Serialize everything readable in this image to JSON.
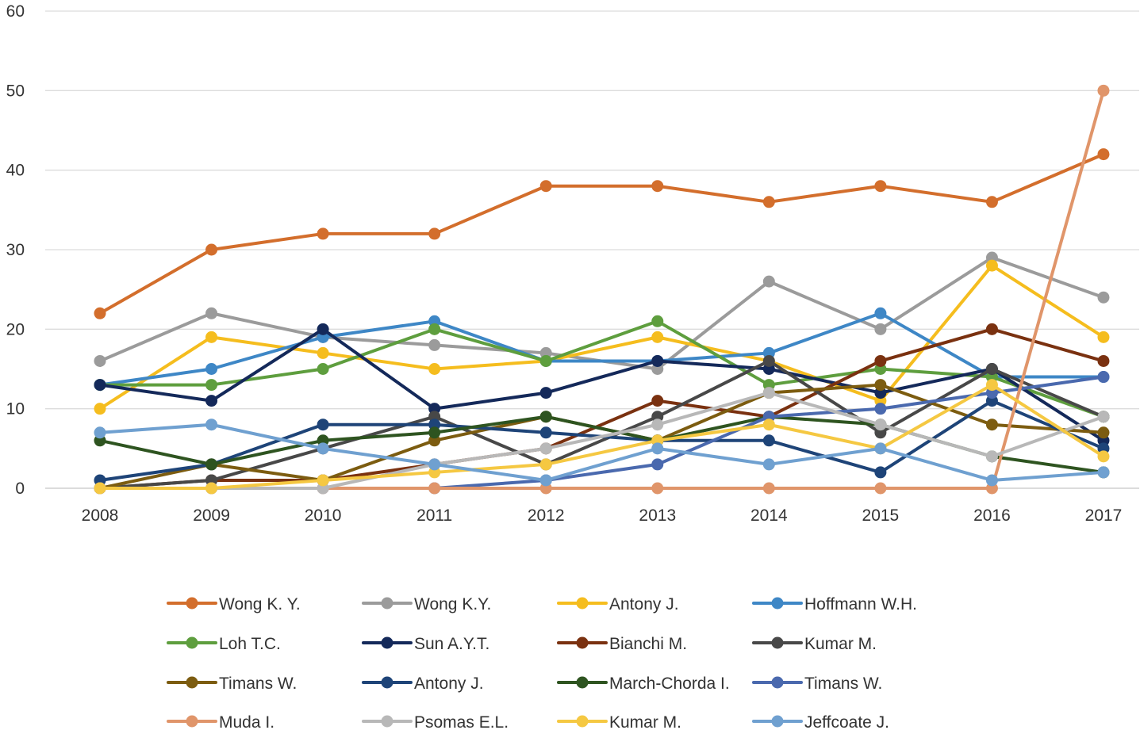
{
  "chart_data": {
    "type": "line",
    "title": "",
    "xlabel": "",
    "ylabel": "",
    "ylim": [
      0,
      60
    ],
    "yticks": [
      "0",
      "10",
      "20",
      "30",
      "40",
      "50",
      "60"
    ],
    "categories": [
      "2008",
      "2009",
      "2010",
      "2011",
      "2012",
      "2013",
      "2014",
      "2015",
      "2016",
      "2017"
    ],
    "grid": "horizontal",
    "legend_position": "bottom",
    "series": [
      {
        "name": "Wong K. Y.",
        "color": "#D36E2C",
        "values": [
          22,
          30,
          32,
          32,
          38,
          38,
          36,
          38,
          36,
          42
        ]
      },
      {
        "name": "Wong K.Y.",
        "color": "#9B9B9B",
        "values": [
          16,
          22,
          19,
          18,
          17,
          15,
          26,
          20,
          29,
          24
        ]
      },
      {
        "name": "Antony J.",
        "color": "#F5BD1E",
        "values": [
          10,
          19,
          17,
          15,
          16,
          19,
          16,
          11,
          28,
          19
        ]
      },
      {
        "name": "Hoffmann W.H.",
        "color": "#3E87C6",
        "values": [
          13,
          15,
          19,
          21,
          16,
          16,
          17,
          22,
          14,
          14
        ]
      },
      {
        "name": "Loh T.C.",
        "color": "#5E9E3E",
        "values": [
          13,
          13,
          15,
          20,
          16,
          21,
          13,
          15,
          14,
          9
        ]
      },
      {
        "name": "Sun A.Y.T.",
        "color": "#14295A",
        "values": [
          13,
          11,
          20,
          10,
          12,
          16,
          15,
          12,
          15,
          6
        ]
      },
      {
        "name": "Bianchi M.",
        "color": "#7A3110",
        "values": [
          0,
          1,
          1,
          3,
          5,
          11,
          9,
          16,
          20,
          16
        ]
      },
      {
        "name": "Kumar M.",
        "color": "#484848",
        "values": [
          0,
          1,
          5,
          9,
          3,
          9,
          16,
          7,
          15,
          9
        ]
      },
      {
        "name": "Timans W.",
        "color": "#7C5C10",
        "values": [
          0,
          3,
          1,
          6,
          9,
          6,
          12,
          13,
          8,
          7
        ]
      },
      {
        "name": "Antony J.",
        "color": "#1E4478",
        "values": [
          1,
          3,
          8,
          8,
          7,
          6,
          6,
          2,
          11,
          5
        ]
      },
      {
        "name": "March-Chorda I.",
        "color": "#2E5420",
        "values": [
          6,
          3,
          6,
          7,
          9,
          6,
          9,
          8,
          4,
          2
        ]
      },
      {
        "name": "Timans W.",
        "color": "#4A69AE",
        "values": [
          0,
          0,
          0,
          0,
          1,
          3,
          9,
          10,
          12,
          14
        ]
      },
      {
        "name": "Muda I.",
        "color": "#E0956A",
        "values": [
          0,
          0,
          0,
          0,
          0,
          0,
          0,
          0,
          0,
          50
        ]
      },
      {
        "name": "Psomas E.L.",
        "color": "#B8B8B8",
        "values": [
          0,
          0,
          0,
          3,
          5,
          8,
          12,
          8,
          4,
          9
        ]
      },
      {
        "name": "Kumar M.",
        "color": "#F5C842",
        "values": [
          0,
          0,
          1,
          2,
          3,
          6,
          8,
          5,
          13,
          4
        ]
      },
      {
        "name": "Jeffcoate J.",
        "color": "#6FA0D0",
        "values": [
          7,
          8,
          5,
          3,
          1,
          5,
          3,
          5,
          1,
          2
        ]
      }
    ]
  }
}
